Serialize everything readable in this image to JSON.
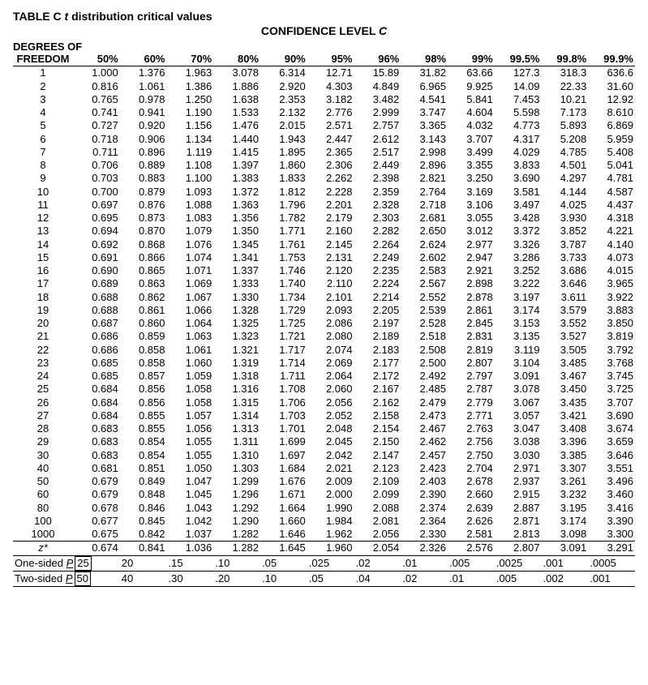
{
  "title_prefix": "TABLE C ",
  "title_italic": "t",
  "title_suffix": " distribution critical values",
  "confidence_label": "CONFIDENCE LEVEL ",
  "confidence_italic": "C",
  "degrees_label1": "DEGREES OF",
  "degrees_label2": "FREEDOM",
  "conf_levels": [
    "50%",
    "60%",
    "70%",
    "80%",
    "90%",
    "95%",
    "96%",
    "98%",
    "99%",
    "99.5%",
    "99.8%",
    "99.9%"
  ],
  "df_labels": [
    "1",
    "2",
    "3",
    "4",
    "5",
    "6",
    "7",
    "8",
    "9",
    "10",
    "11",
    "12",
    "13",
    "14",
    "15",
    "16",
    "17",
    "18",
    "19",
    "20",
    "21",
    "22",
    "23",
    "24",
    "25",
    "26",
    "27",
    "28",
    "29",
    "30",
    "40",
    "50",
    "60",
    "80",
    "100",
    "1000"
  ],
  "rows": [
    [
      "1.000",
      "1.376",
      "1.963",
      "3.078",
      "6.314",
      "12.71",
      "15.89",
      "31.82",
      "63.66",
      "127.3",
      "318.3",
      "636.6"
    ],
    [
      "0.816",
      "1.061",
      "1.386",
      "1.886",
      "2.920",
      "4.303",
      "4.849",
      "6.965",
      "9.925",
      "14.09",
      "22.33",
      "31.60"
    ],
    [
      "0.765",
      "0.978",
      "1.250",
      "1.638",
      "2.353",
      "3.182",
      "3.482",
      "4.541",
      "5.841",
      "7.453",
      "10.21",
      "12.92"
    ],
    [
      "0.741",
      "0.941",
      "1.190",
      "1.533",
      "2.132",
      "2.776",
      "2.999",
      "3.747",
      "4.604",
      "5.598",
      "7.173",
      "8.610"
    ],
    [
      "0.727",
      "0.920",
      "1.156",
      "1.476",
      "2.015",
      "2.571",
      "2.757",
      "3.365",
      "4.032",
      "4.773",
      "5.893",
      "6.869"
    ],
    [
      "0.718",
      "0.906",
      "1.134",
      "1.440",
      "1.943",
      "2.447",
      "2.612",
      "3.143",
      "3.707",
      "4.317",
      "5.208",
      "5.959"
    ],
    [
      "0.711",
      "0.896",
      "1.119",
      "1.415",
      "1.895",
      "2.365",
      "2.517",
      "2.998",
      "3.499",
      "4.029",
      "4.785",
      "5.408"
    ],
    [
      "0.706",
      "0.889",
      "1.108",
      "1.397",
      "1.860",
      "2.306",
      "2.449",
      "2.896",
      "3.355",
      "3.833",
      "4.501",
      "5.041"
    ],
    [
      "0.703",
      "0.883",
      "1.100",
      "1.383",
      "1.833",
      "2.262",
      "2.398",
      "2.821",
      "3.250",
      "3.690",
      "4.297",
      "4.781"
    ],
    [
      "0.700",
      "0.879",
      "1.093",
      "1.372",
      "1.812",
      "2.228",
      "2.359",
      "2.764",
      "3.169",
      "3.581",
      "4.144",
      "4.587"
    ],
    [
      "0.697",
      "0.876",
      "1.088",
      "1.363",
      "1.796",
      "2.201",
      "2.328",
      "2.718",
      "3.106",
      "3.497",
      "4.025",
      "4.437"
    ],
    [
      "0.695",
      "0.873",
      "1.083",
      "1.356",
      "1.782",
      "2.179",
      "2.303",
      "2.681",
      "3.055",
      "3.428",
      "3.930",
      "4.318"
    ],
    [
      "0.694",
      "0.870",
      "1.079",
      "1.350",
      "1.771",
      "2.160",
      "2.282",
      "2.650",
      "3.012",
      "3.372",
      "3.852",
      "4.221"
    ],
    [
      "0.692",
      "0.868",
      "1.076",
      "1.345",
      "1.761",
      "2.145",
      "2.264",
      "2.624",
      "2.977",
      "3.326",
      "3.787",
      "4.140"
    ],
    [
      "0.691",
      "0.866",
      "1.074",
      "1.341",
      "1.753",
      "2.131",
      "2.249",
      "2.602",
      "2.947",
      "3.286",
      "3.733",
      "4.073"
    ],
    [
      "0.690",
      "0.865",
      "1.071",
      "1.337",
      "1.746",
      "2.120",
      "2.235",
      "2.583",
      "2.921",
      "3.252",
      "3.686",
      "4.015"
    ],
    [
      "0.689",
      "0.863",
      "1.069",
      "1.333",
      "1.740",
      "2.110",
      "2.224",
      "2.567",
      "2.898",
      "3.222",
      "3.646",
      "3.965"
    ],
    [
      "0.688",
      "0.862",
      "1.067",
      "1.330",
      "1.734",
      "2.101",
      "2.214",
      "2.552",
      "2.878",
      "3.197",
      "3.611",
      "3.922"
    ],
    [
      "0.688",
      "0.861",
      "1.066",
      "1.328",
      "1.729",
      "2.093",
      "2.205",
      "2.539",
      "2.861",
      "3.174",
      "3.579",
      "3.883"
    ],
    [
      "0.687",
      "0.860",
      "1.064",
      "1.325",
      "1.725",
      "2.086",
      "2.197",
      "2.528",
      "2.845",
      "3.153",
      "3.552",
      "3.850"
    ],
    [
      "0.686",
      "0.859",
      "1.063",
      "1.323",
      "1.721",
      "2.080",
      "2.189",
      "2.518",
      "2.831",
      "3.135",
      "3.527",
      "3.819"
    ],
    [
      "0.686",
      "0.858",
      "1.061",
      "1.321",
      "1.717",
      "2.074",
      "2.183",
      "2.508",
      "2.819",
      "3.119",
      "3.505",
      "3.792"
    ],
    [
      "0.685",
      "0.858",
      "1.060",
      "1.319",
      "1.714",
      "2.069",
      "2.177",
      "2.500",
      "2.807",
      "3.104",
      "3.485",
      "3.768"
    ],
    [
      "0.685",
      "0.857",
      "1.059",
      "1.318",
      "1.711",
      "2.064",
      "2.172",
      "2.492",
      "2.797",
      "3.091",
      "3.467",
      "3.745"
    ],
    [
      "0.684",
      "0.856",
      "1.058",
      "1.316",
      "1.708",
      "2.060",
      "2.167",
      "2.485",
      "2.787",
      "3.078",
      "3.450",
      "3.725"
    ],
    [
      "0.684",
      "0.856",
      "1.058",
      "1.315",
      "1.706",
      "2.056",
      "2.162",
      "2.479",
      "2.779",
      "3.067",
      "3.435",
      "3.707"
    ],
    [
      "0.684",
      "0.855",
      "1.057",
      "1.314",
      "1.703",
      "2.052",
      "2.158",
      "2.473",
      "2.771",
      "3.057",
      "3.421",
      "3.690"
    ],
    [
      "0.683",
      "0.855",
      "1.056",
      "1.313",
      "1.701",
      "2.048",
      "2.154",
      "2.467",
      "2.763",
      "3.047",
      "3.408",
      "3.674"
    ],
    [
      "0.683",
      "0.854",
      "1.055",
      "1.311",
      "1.699",
      "2.045",
      "2.150",
      "2.462",
      "2.756",
      "3.038",
      "3.396",
      "3.659"
    ],
    [
      "0.683",
      "0.854",
      "1.055",
      "1.310",
      "1.697",
      "2.042",
      "2.147",
      "2.457",
      "2.750",
      "3.030",
      "3.385",
      "3.646"
    ],
    [
      "0.681",
      "0.851",
      "1.050",
      "1.303",
      "1.684",
      "2.021",
      "2.123",
      "2.423",
      "2.704",
      "2.971",
      "3.307",
      "3.551"
    ],
    [
      "0.679",
      "0.849",
      "1.047",
      "1.299",
      "1.676",
      "2.009",
      "2.109",
      "2.403",
      "2.678",
      "2.937",
      "3.261",
      "3.496"
    ],
    [
      "0.679",
      "0.848",
      "1.045",
      "1.296",
      "1.671",
      "2.000",
      "2.099",
      "2.390",
      "2.660",
      "2.915",
      "3.232",
      "3.460"
    ],
    [
      "0.678",
      "0.846",
      "1.043",
      "1.292",
      "1.664",
      "1.990",
      "2.088",
      "2.374",
      "2.639",
      "2.887",
      "3.195",
      "3.416"
    ],
    [
      "0.677",
      "0.845",
      "1.042",
      "1.290",
      "1.660",
      "1.984",
      "2.081",
      "2.364",
      "2.626",
      "2.871",
      "3.174",
      "3.390"
    ],
    [
      "0.675",
      "0.842",
      "1.037",
      "1.282",
      "1.646",
      "1.962",
      "2.056",
      "2.330",
      "2.581",
      "2.813",
      "3.098",
      "3.300"
    ]
  ],
  "zstar_label": "z*",
  "zstar": [
    "0.674",
    "0.841",
    "1.036",
    "1.282",
    "1.645",
    "1.960",
    "2.054",
    "2.326",
    "2.576",
    "2.807",
    "3.091",
    "3.291"
  ],
  "one_sided_label": "One-sided ",
  "one_sided_P": "P",
  "one_sided_box": "25",
  "one_sided": [
    "20",
    ".15",
    ".10",
    ".05",
    ".025",
    ".02",
    ".01",
    ".005",
    ".0025",
    ".001",
    ".0005"
  ],
  "two_sided_label": "Two-sided ",
  "two_sided_P": "P",
  "two_sided_box": "50",
  "two_sided": [
    "40",
    ".30",
    ".20",
    ".10",
    ".05",
    ".04",
    ".02",
    ".01",
    ".005",
    ".002",
    ".001"
  ]
}
